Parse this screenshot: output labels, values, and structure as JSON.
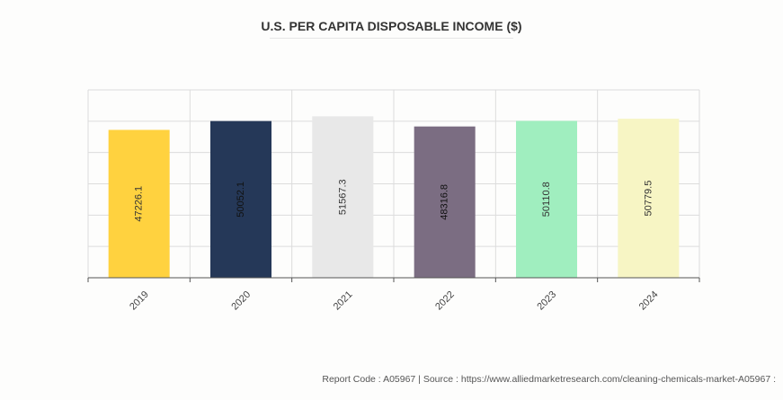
{
  "chart_data": {
    "type": "bar",
    "title": "U.S. PER CAPITA DISPOSABLE INCOME ($)",
    "xlabel": "",
    "ylabel": "",
    "categories": [
      "2019",
      "2020",
      "2021",
      "2022",
      "2023",
      "2024"
    ],
    "values": [
      47226.1,
      50052.1,
      51567.3,
      48316.8,
      50110.8,
      50779.5
    ],
    "value_labels": [
      "47226.1",
      "50052.1",
      "51567.3",
      "48316.8",
      "50110.8",
      "50779.5"
    ],
    "colors": [
      "#ffd23f",
      "#253858",
      "#e8e8e8",
      "#7b6d82",
      "#a0eebf",
      "#f7f5c4"
    ],
    "label_colors": [
      "#333333",
      "#111111",
      "#333333",
      "#111111",
      "#333333",
      "#333333"
    ],
    "ylim": [
      0,
      60000
    ],
    "ytick_step": 10000,
    "grid": true,
    "legend": "none"
  },
  "footer": "Report Code : A05967  |  Source : https://www.alliedmarketresearch.com/cleaning-chemicals-market-A05967 :"
}
